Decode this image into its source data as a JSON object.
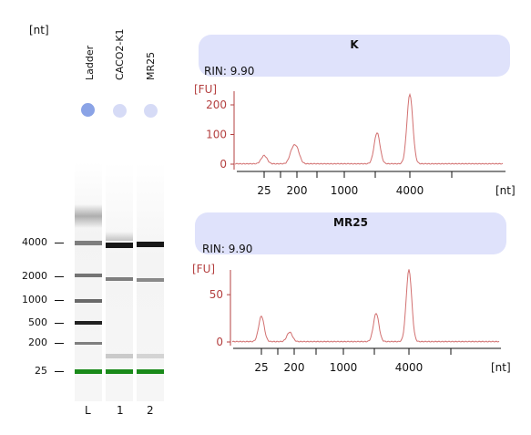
{
  "gel": {
    "y_unit": "[nt]",
    "lane_names": [
      "Ladder",
      "CACO2-K1",
      "MR25"
    ],
    "lane_ids": [
      "L",
      "1",
      "2"
    ],
    "size_markers": [
      "4000",
      "2000",
      "1000",
      "500",
      "200",
      "25"
    ]
  },
  "chart_data": [
    {
      "type": "line",
      "title": "K",
      "rin_text": "RIN: 9.90",
      "ylabel": "[FU]",
      "xlabel": "[nt]",
      "ylim": [
        0,
        240
      ],
      "yticks": [
        0,
        100,
        200
      ],
      "x_ticks": [
        "25",
        "200",
        "1000",
        "4000"
      ],
      "peaks": [
        {
          "x": 25,
          "value": 28
        },
        {
          "x": 150,
          "value": 42
        },
        {
          "x": 200,
          "value": 45
        },
        {
          "x": 2000,
          "value": 105
        },
        {
          "x": 4000,
          "value": 235
        }
      ]
    },
    {
      "type": "line",
      "title": "MR25",
      "rin_text": "RIN: 9.90",
      "ylabel": "[FU]",
      "xlabel": "[nt]",
      "ylim": [
        0,
        80
      ],
      "yticks": [
        0,
        50
      ],
      "x_ticks": [
        "25",
        "200",
        "1000",
        "4000"
      ],
      "peaks": [
        {
          "x": 25,
          "value": 27
        },
        {
          "x": 150,
          "value": 10
        },
        {
          "x": 2000,
          "value": 30
        },
        {
          "x": 4000,
          "value": 76
        }
      ]
    }
  ],
  "colors": {
    "trace": "#d27070",
    "axis": "#b44040",
    "panel_header": "#dfe2fb",
    "marker_band": "#1a8a1a"
  }
}
